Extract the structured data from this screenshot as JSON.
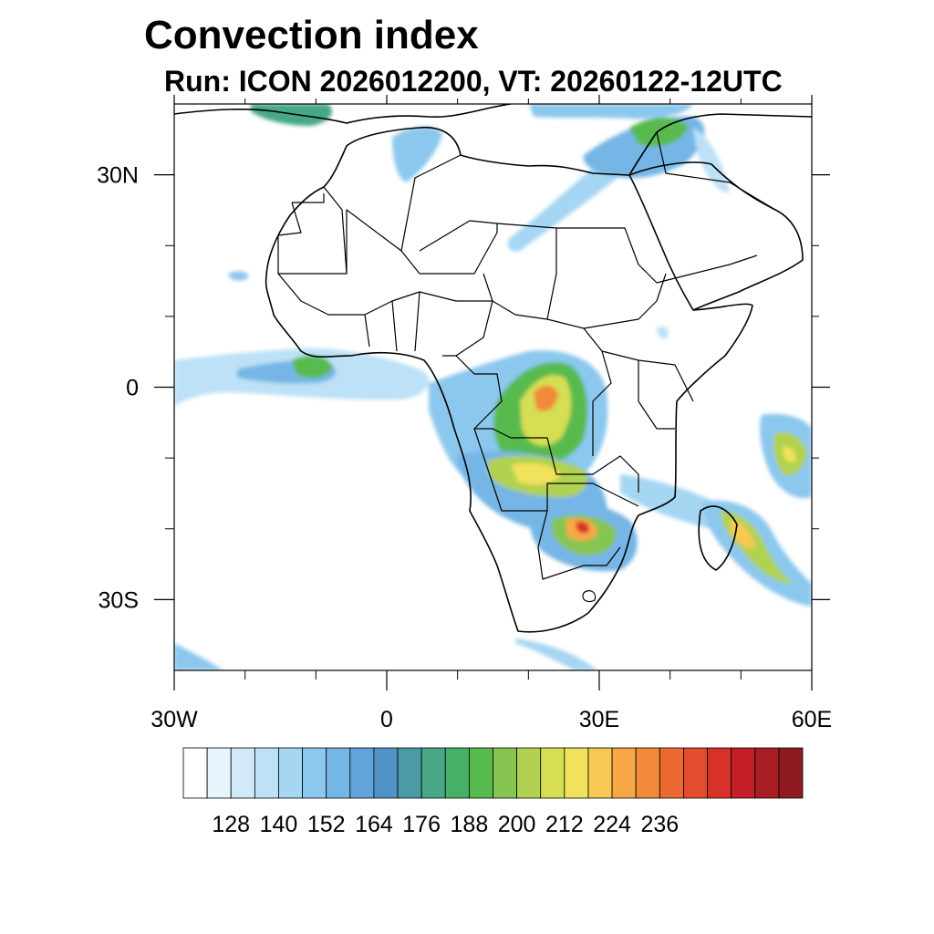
{
  "figure": {
    "title": "Convection index",
    "subtitle": "Run: ICON 2026012200,  VT: 20260122-12UTC"
  },
  "map": {
    "projection": "cylindrical-equidistant",
    "lon_range": [
      -30,
      60
    ],
    "lat_range": [
      -40,
      40
    ],
    "x_tick_labels": [
      "30W",
      "0",
      "30E",
      "60E"
    ],
    "x_tick_values": [
      -30,
      0,
      30,
      60
    ],
    "y_tick_labels": [
      "30N",
      "0",
      "30S"
    ],
    "y_tick_values": [
      30,
      0,
      -30
    ],
    "minor_ticks": [
      -20,
      -10,
      10,
      20,
      40,
      50
    ]
  },
  "colorbar": {
    "tick_labels": [
      "128",
      "140",
      "152",
      "164",
      "176",
      "188",
      "200",
      "212",
      "224",
      "236"
    ],
    "first_label_bin": 2,
    "label_every_bins": 2,
    "colors": [
      "#ffffff",
      "#e8f4fc",
      "#d2eaf8",
      "#bde1f6",
      "#a5d6f3",
      "#8cc8ee",
      "#76b6e6",
      "#62a3dc",
      "#5192c8",
      "#4b9aa6",
      "#47a787",
      "#46b166",
      "#58ba4e",
      "#87c551",
      "#b1d250",
      "#d6de52",
      "#f0e25a",
      "#f7c952",
      "#f7a746",
      "#f28a3a",
      "#ec6a31",
      "#e34c2c",
      "#d83129",
      "#c41f28",
      "#a91d24",
      "#8e1a1f"
    ]
  }
}
